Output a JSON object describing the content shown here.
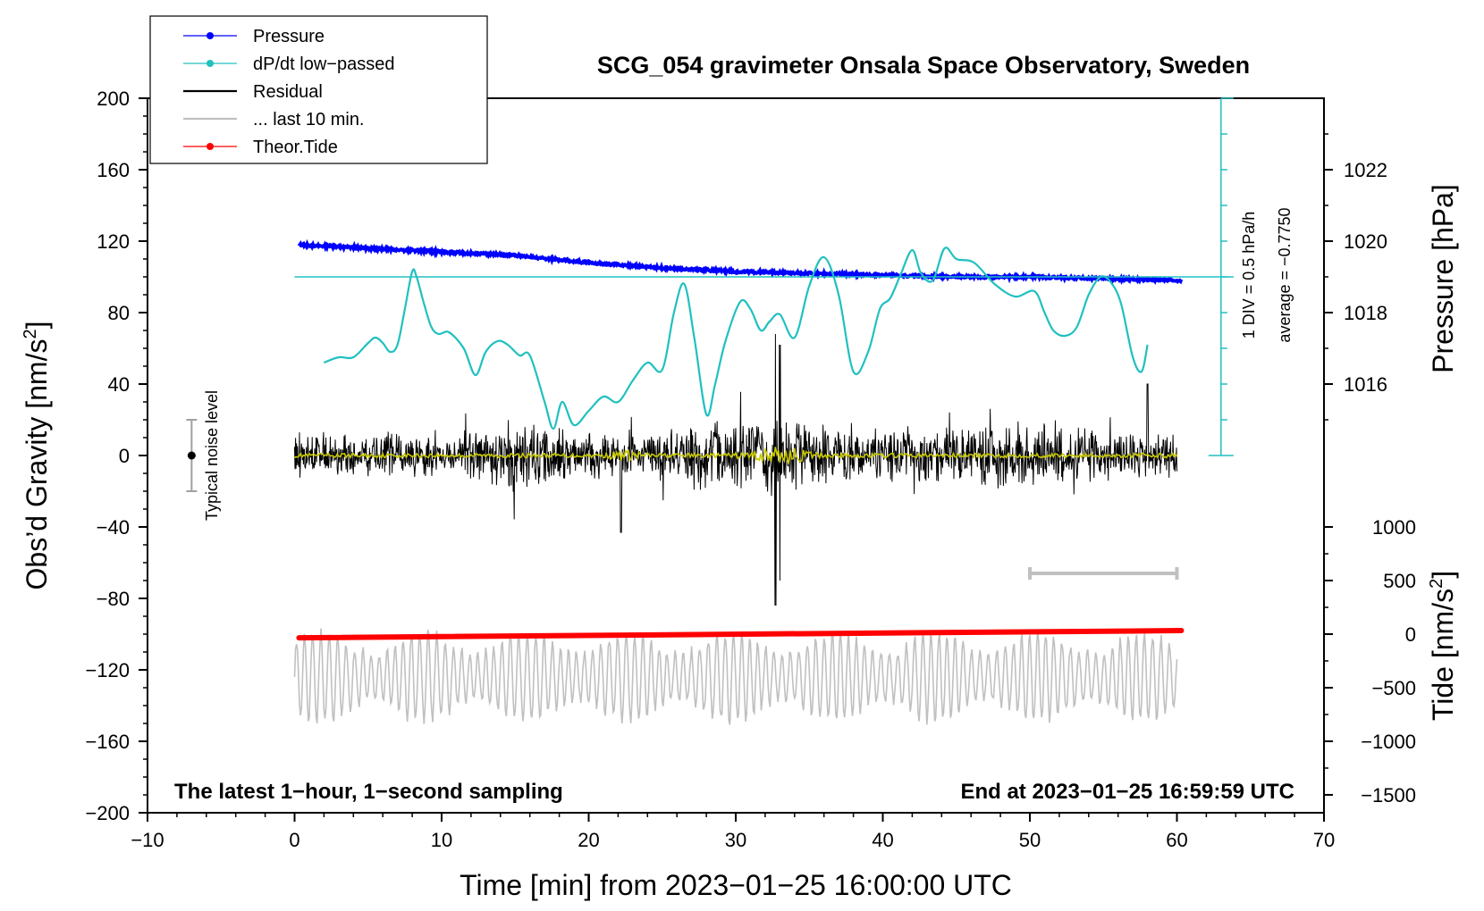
{
  "chart_data": {
    "type": "line",
    "title": "SCG_054 gravimeter Onsala Space Observatory, Sweden",
    "xlabel": "Time [min] from 2023−01−25 16:00:00 UTC",
    "ylabel_left": "Obs’d Gravity [nm/s",
    "ylabel_left_sup": "2",
    "ylabel_left_end": "]",
    "ylabel_pressure": "Pressure [hPa]",
    "ylabel_tide": "Tide [nm/s",
    "ylabel_tide_sup": "2",
    "ylabel_tide_end": "]",
    "xlim": [
      -10,
      70
    ],
    "ylim": [
      -200,
      200
    ],
    "xticks": [
      -10,
      0,
      10,
      20,
      30,
      40,
      50,
      60,
      70
    ],
    "xtick_labels": [
      "−10",
      "0",
      "10",
      "20",
      "30",
      "40",
      "50",
      "60",
      "70"
    ],
    "yticks": [
      200,
      160,
      120,
      80,
      40,
      0,
      -40,
      -80,
      -120,
      -160,
      -200
    ],
    "ytick_labels": [
      "200",
      "160",
      "120",
      "80",
      "40",
      "0",
      "−40",
      "−80",
      "−120",
      "−160",
      "−200"
    ],
    "pressure_axis": {
      "ticks": [
        1022,
        1020,
        1018,
        1016
      ],
      "tick_labels": [
        "1022",
        "1020",
        "1018",
        "1016"
      ],
      "anchor_gravity_at_1016": 40,
      "gravity_per_hpa": 20
    },
    "tide_axis": {
      "ticks": [
        1000,
        500,
        0,
        -500,
        -1000,
        -1500
      ],
      "tick_labels": [
        "1000",
        "500",
        "0",
        "−500",
        "−1000",
        "−1500"
      ],
      "tide_zero_at_gravity": -100,
      "tide_per_gravity_unit": 16.67
    },
    "dpdt_scale": {
      "label_div": "1 DIV = 0.5 hPa/h",
      "label_avg": "average = −0.7750",
      "x_position_min": 63,
      "bottom_gravity": 0,
      "top_gravity": 200,
      "div_gravity": 20,
      "baseline_gravity": 100
    },
    "legend": [
      {
        "label": "Pressure",
        "color": "#0000ff",
        "marker": true
      },
      {
        "label": "dP/dt low−passed",
        "color": "#20c0c0",
        "marker": true
      },
      {
        "label": "Residual",
        "color": "#000000",
        "marker": false
      },
      {
        "label": "... last 10 min.",
        "color": "#c0c0c0",
        "marker": false
      },
      {
        "label": "Theor.Tide",
        "color": "#ff0000",
        "marker": true
      }
    ],
    "annotations": {
      "noise_label": "Typical noise level",
      "noise_center": 0,
      "noise_half_range": 20,
      "noise_x": -7,
      "left_note": "The latest 1−hour, 1−second sampling",
      "right_note": "End at 2023−01−25 16:59:59 UTC",
      "last10_bar": {
        "x0": 50,
        "x1": 60,
        "y": -66
      }
    },
    "series": [
      {
        "name": "Pressure",
        "color": "#0000ff",
        "unit": "hPa",
        "x": [
          0.3,
          5,
          10,
          15,
          20,
          25,
          30,
          35,
          40,
          45,
          50,
          55,
          60.3
        ],
        "values": [
          1019.9,
          1019.8,
          1019.7,
          1019.6,
          1019.4,
          1019.25,
          1019.15,
          1019.1,
          1019.05,
          1019.0,
          1019.0,
          1018.95,
          1018.9
        ]
      },
      {
        "name": "dP/dt low-passed",
        "color": "#20c0c0",
        "unit": "gravity-axis units (1 DIV = 0.5 hPa/h)",
        "x": [
          2,
          3,
          4,
          5,
          5.5,
          6,
          6.5,
          7,
          7.5,
          8,
          8.3,
          8.8,
          9.3,
          9.8,
          10.5,
          11.5,
          12.3,
          13,
          13.8,
          14.5,
          15.3,
          16,
          17,
          17.6,
          18.2,
          19,
          20,
          21,
          22,
          23,
          24,
          25,
          25.8,
          26.5,
          27.2,
          28,
          28.6,
          29.3,
          30.3,
          31,
          31.7,
          32.3,
          33,
          34,
          35,
          36,
          37,
          38,
          39,
          39.8,
          40.5,
          41.2,
          42,
          42.6,
          43.4,
          44.2,
          45,
          46.2,
          47.6,
          49,
          50.3,
          51,
          51.6,
          52.4,
          53.2,
          54,
          54.8,
          55.5,
          56.2,
          57,
          57.6,
          58
        ],
        "values": [
          52,
          55,
          55,
          63,
          66,
          63,
          58,
          62,
          82,
          103,
          100,
          85,
          72,
          68,
          69,
          60,
          45,
          58,
          64,
          62,
          56,
          56,
          30,
          15,
          30,
          17,
          25,
          33,
          30,
          42,
          52,
          48,
          80,
          96,
          65,
          23,
          40,
          64,
          86,
          82,
          70,
          75,
          79,
          66,
          95,
          111,
          90,
          47,
          58,
          82,
          88,
          101,
          115,
          102,
          98,
          116,
          110,
          108,
          96,
          89,
          92,
          80,
          70,
          67,
          72,
          90,
          100,
          97,
          85,
          55,
          47,
          62
        ]
      },
      {
        "name": "Residual (running mean)",
        "color": "#c8c800",
        "x": [
          0,
          60
        ],
        "values": [
          0,
          0
        ]
      },
      {
        "name": "Theor.Tide",
        "color": "#ff0000",
        "unit": "nm/s2 (tide axis)",
        "x": [
          0.3,
          60.3
        ],
        "values": [
          -34,
          33
        ]
      },
      {
        "name": "... last 10 min.",
        "color": "#c0c0c0",
        "x": [
          0,
          60
        ],
        "mean_gravity": -124
      }
    ]
  }
}
